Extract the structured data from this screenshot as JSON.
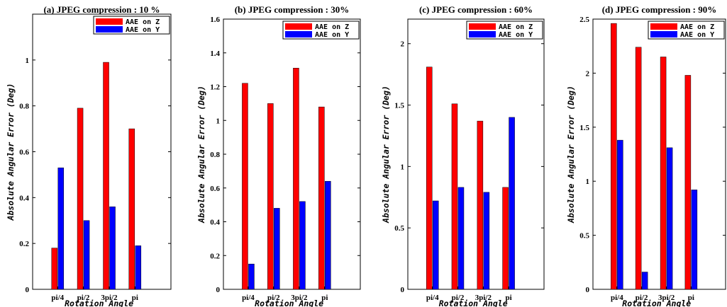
{
  "colors": {
    "series_z": "#ff0000",
    "series_y": "#0000ff",
    "axis": "#000000",
    "background": "#ffffff"
  },
  "chart_data": [
    {
      "type": "bar",
      "title": "(a) JPEG compression : 10 %",
      "xlabel": "Rotation Angle",
      "ylabel": "Absolute Angular Error  (Deg)",
      "categories": [
        "pi/4",
        "pi/2",
        "3pi/2",
        "pi"
      ],
      "ylim": [
        0,
        1.2
      ],
      "yticks": [
        0,
        0.2,
        0.4,
        0.6,
        0.8,
        1
      ],
      "ytick_labels": [
        "0",
        "0.2",
        "0.4",
        "0.6",
        "0.8",
        "1"
      ],
      "legend_position": "top-right",
      "grid": false,
      "series": [
        {
          "name": "AAE on Z",
          "values": [
            0.18,
            0.79,
            0.99,
            0.7
          ]
        },
        {
          "name": "AAE on Y",
          "values": [
            0.53,
            0.3,
            0.36,
            0.19
          ]
        }
      ]
    },
    {
      "type": "bar",
      "title": "(b) JPEG compression : 30%",
      "xlabel": "Rotation Angle",
      "ylabel": "Absolute Angular Error  (Deg)",
      "categories": [
        "pi/4",
        "pi/2",
        "3pi/2",
        "pi"
      ],
      "ylim": [
        0,
        1.6
      ],
      "yticks": [
        0,
        0.2,
        0.4,
        0.6,
        0.8,
        1,
        1.2,
        1.4,
        1.6
      ],
      "ytick_labels": [
        "0",
        "0.2",
        "0.4",
        "0.6",
        "0.8",
        "1",
        "1.2",
        "1.4",
        "1.6"
      ],
      "legend_position": "top-right",
      "grid": false,
      "series": [
        {
          "name": "AAE on Z",
          "values": [
            1.22,
            1.1,
            1.31,
            1.08
          ]
        },
        {
          "name": "AAE on Y",
          "values": [
            0.15,
            0.48,
            0.52,
            0.64
          ]
        }
      ]
    },
    {
      "type": "bar",
      "title": "(c) JPEG compression : 60%",
      "xlabel": "Rotation Angle",
      "ylabel": "Absolute Angular Error  (Deg)",
      "categories": [
        "pi/4",
        "pi/2",
        "3pi/2",
        "pi"
      ],
      "ylim": [
        0,
        2.2
      ],
      "yticks": [
        0,
        0.5,
        1,
        1.5,
        2
      ],
      "ytick_labels": [
        "0",
        "0.5",
        "1",
        "1.5",
        "2"
      ],
      "legend_position": "top-right",
      "grid": false,
      "series": [
        {
          "name": "AAE on Z",
          "values": [
            1.81,
            1.51,
            1.37,
            0.83
          ]
        },
        {
          "name": "AAE on Y",
          "values": [
            0.72,
            0.83,
            0.79,
            1.4
          ]
        }
      ]
    },
    {
      "type": "bar",
      "title": "(d) JPEG compression : 90%",
      "xlabel": "Rotation Angle",
      "ylabel": "Absolute Angular Error  (Deg)",
      "categories": [
        "pi/4",
        "pi/2",
        "3pi/2",
        "pi"
      ],
      "ylim": [
        0,
        2.5
      ],
      "yticks": [
        0,
        0.5,
        1,
        1.5,
        2,
        2.5
      ],
      "ytick_labels": [
        "0",
        "0.5",
        "1",
        "1.5",
        "2",
        "2.5"
      ],
      "legend_position": "top-right",
      "grid": false,
      "series": [
        {
          "name": "AAE on Z",
          "values": [
            2.46,
            2.24,
            2.15,
            1.98
          ]
        },
        {
          "name": "AAE on Y",
          "values": [
            1.38,
            0.16,
            1.31,
            0.92
          ]
        }
      ]
    }
  ]
}
